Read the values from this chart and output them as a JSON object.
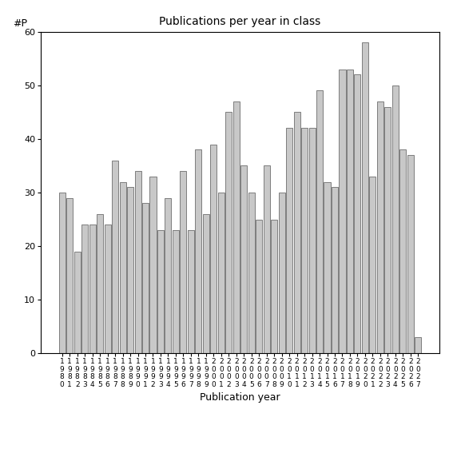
{
  "title": "Publications per year in class",
  "xlabel": "Publication year",
  "ylabel": "#P",
  "ylim": [
    0,
    60
  ],
  "yticks": [
    0,
    10,
    20,
    30,
    40,
    50,
    60
  ],
  "bar_color": "#c8c8c8",
  "bar_edgecolor": "#555555",
  "background_color": "#ffffff",
  "years": [
    1980,
    1981,
    1982,
    1983,
    1984,
    1985,
    1986,
    1987,
    1988,
    1989,
    1990,
    1991,
    1992,
    1993,
    1994,
    1995,
    1996,
    1997,
    1998,
    1999,
    2000,
    2001,
    2002,
    2003,
    2004,
    2005,
    2006,
    2007,
    2008,
    2009,
    2010,
    2011,
    2012,
    2013,
    2014,
    2015,
    2016,
    2017,
    2018,
    2019,
    2020,
    2021,
    2022,
    2023,
    2024,
    2025,
    2026,
    2027
  ],
  "values": [
    30,
    29,
    19,
    24,
    24,
    26,
    24,
    36,
    32,
    31,
    34,
    28,
    33,
    23,
    29,
    23,
    34,
    23,
    38,
    26,
    39,
    30,
    45,
    47,
    35,
    30,
    25,
    35,
    25,
    30,
    42,
    45,
    42,
    42,
    49,
    32,
    31,
    53,
    53,
    52,
    58,
    33,
    47,
    46,
    50,
    38,
    37,
    3
  ]
}
